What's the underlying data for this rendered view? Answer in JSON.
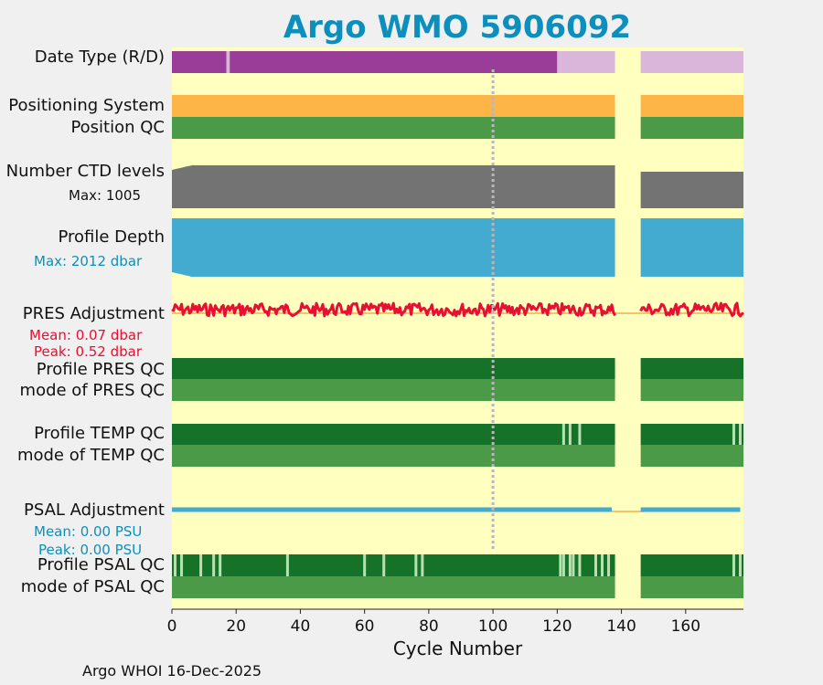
{
  "chart_data": {
    "type": "table",
    "title": "Argo WMO 5906092",
    "xlabel": "Cycle Number",
    "xlim": [
      0,
      178
    ],
    "xticks": [
      0,
      20,
      40,
      60,
      80,
      100,
      120,
      140,
      160
    ],
    "gap_cycles": [
      138,
      146
    ],
    "reference_cycle": 100,
    "rows": [
      {
        "label": "Date Type (R/D)",
        "type": "category",
        "segments": [
          [
            0,
            17,
            "D"
          ],
          [
            17,
            18,
            "light"
          ],
          [
            18,
            120,
            "D"
          ],
          [
            120,
            138,
            "R"
          ],
          [
            146,
            178,
            "R"
          ]
        ]
      },
      {
        "label": "Positioning System",
        "type": "category",
        "segments": [
          [
            0,
            138,
            "GPS"
          ],
          [
            146,
            178,
            "GPS"
          ]
        ]
      },
      {
        "label": "Position QC",
        "type": "qc",
        "segments": [
          [
            0,
            138,
            "good"
          ],
          [
            146,
            178,
            "good"
          ]
        ]
      },
      {
        "label": "Number CTD levels",
        "type": "area",
        "sub": "Max: 1005",
        "max": 1005
      },
      {
        "label": "Profile Depth",
        "type": "area",
        "sub": "Max: 2012 dbar",
        "max_dbar": 2012
      },
      {
        "label": "PRES Adjustment",
        "type": "line",
        "mean_text": "Mean: 0.07 dbar",
        "peak_text": "Peak: 0.52 dbar",
        "mean": 0.07,
        "peak": 0.52
      },
      {
        "label": "Profile PRES QC",
        "type": "qc",
        "segments": [
          [
            0,
            138,
            "A"
          ],
          [
            146,
            178,
            "A"
          ]
        ]
      },
      {
        "label": "mode of PRES QC",
        "type": "qc",
        "segments": [
          [
            0,
            138,
            "1"
          ],
          [
            146,
            178,
            "1"
          ]
        ]
      },
      {
        "label": "Profile TEMP QC",
        "type": "qc",
        "segments": [
          [
            0,
            138,
            "A"
          ],
          [
            146,
            178,
            "A"
          ]
        ],
        "marks": [
          122,
          124,
          127,
          175,
          177
        ]
      },
      {
        "label": "mode of TEMP QC",
        "type": "qc",
        "segments": [
          [
            0,
            138,
            "1"
          ],
          [
            146,
            178,
            "1"
          ]
        ]
      },
      {
        "label": "PSAL Adjustment",
        "type": "line",
        "mean_text": "Mean: 0.00 PSU",
        "peak_text": "Peak: 0.00 PSU",
        "mean": 0.0,
        "peak": 0.0
      },
      {
        "label": "Profile PSAL QC",
        "type": "qc",
        "segments": [
          [
            0,
            138,
            "A"
          ],
          [
            146,
            178,
            "A"
          ]
        ],
        "marks": [
          1,
          3,
          9,
          13,
          15,
          36,
          60,
          66,
          76,
          78,
          121,
          122,
          124,
          125,
          127,
          132,
          134,
          136,
          175,
          177
        ]
      },
      {
        "label": "mode of PSAL QC",
        "type": "qc",
        "segments": [
          [
            0,
            138,
            "1"
          ],
          [
            146,
            178,
            "1"
          ]
        ]
      }
    ]
  },
  "colors": {
    "background": "#ffffc0",
    "title": "#0c8fbd",
    "delayed": "#993d99",
    "realtime": "#dbb6db",
    "gps": "#fdb547",
    "qc_good": "#4a9a48",
    "qc_dark": "#167229",
    "qc_light": "#b8e0b0",
    "ctd": "#737373",
    "depth": "#43abcf",
    "pres_line": "#e81032",
    "psal_line": "#43abcf",
    "zero_line": "#f4b04b"
  },
  "footer": "Argo WHOI 16-Dec-2025"
}
